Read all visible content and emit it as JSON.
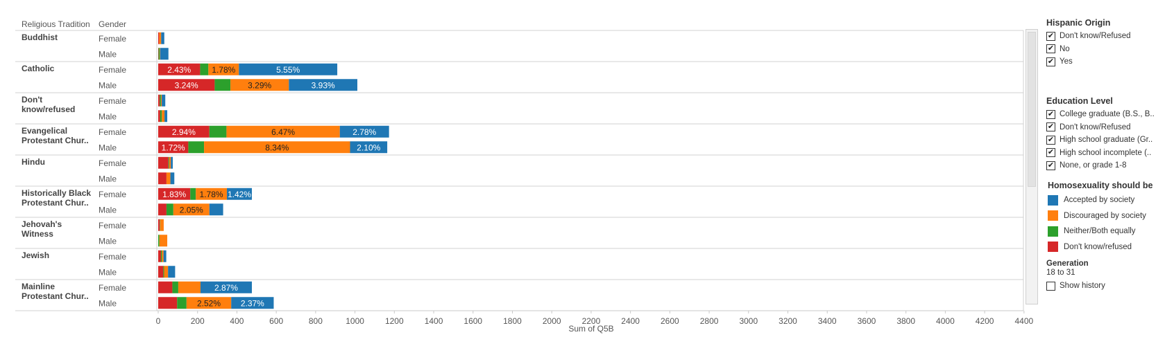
{
  "header": {
    "religion_col": "Religious Tradition",
    "gender_col": "Gender"
  },
  "filters": {
    "hispanic": {
      "title": "Hispanic Origin",
      "items": [
        {
          "label": "Don't know/Refused",
          "checked": true
        },
        {
          "label": "No",
          "checked": true
        },
        {
          "label": "Yes",
          "checked": true
        }
      ]
    },
    "education": {
      "title": "Education Level",
      "items": [
        {
          "label": "College graduate (B.S., B..",
          "checked": true
        },
        {
          "label": "Don't know/Refused",
          "checked": true
        },
        {
          "label": "High school graduate (Gr..",
          "checked": true
        },
        {
          "label": "High school incomplete (..",
          "checked": true
        },
        {
          "label": "None, or grade 1-8",
          "checked": true
        }
      ]
    }
  },
  "legend": {
    "title": "Homosexuality should be",
    "items": [
      {
        "label": "Accepted by society",
        "color": "#1f77b4"
      },
      {
        "label": "Discouraged by society",
        "color": "#ff7f0e"
      },
      {
        "label": "Neither/Both equally",
        "color": "#2ca02c"
      },
      {
        "label": "Don't know/refused",
        "color": "#d62728"
      }
    ]
  },
  "generation": {
    "title": "Generation",
    "value": "18 to 31",
    "show_history_label": "Show history",
    "show_history_checked": false
  },
  "chart_data": {
    "type": "bar",
    "orientation": "horizontal",
    "stacked": true,
    "xlabel": "Sum of Q5B",
    "xlim": [
      0,
      4500
    ],
    "xticks": [
      0,
      200,
      400,
      600,
      800,
      1000,
      1200,
      1400,
      1600,
      1800,
      2000,
      2200,
      2400,
      2600,
      2800,
      3000,
      3200,
      3400,
      3600,
      3800,
      4000,
      4200,
      4400
    ],
    "stack_order": [
      "Don't know/refused",
      "Neither/Both equally",
      "Discouraged by society",
      "Accepted by society"
    ],
    "series_colors": {
      "Don't know/refused": "#d62728",
      "Neither/Both equally": "#2ca02c",
      "Discouraged by society": "#ff7f0e",
      "Accepted by society": "#1f77b4"
    },
    "groups": [
      {
        "religion": [
          "Buddhist"
        ],
        "rows": [
          {
            "gender": "Female",
            "segments": [
              {
                "series": "Don't know/refused",
                "value": 5
              },
              {
                "series": "Neither/Both equally",
                "value": 0
              },
              {
                "series": "Discouraged by society",
                "value": 10
              },
              {
                "series": "Accepted by society",
                "value": 16
              }
            ]
          },
          {
            "gender": "Male",
            "segments": [
              {
                "series": "Don't know/refused",
                "value": 2
              },
              {
                "series": "Neither/Both equally",
                "value": 6
              },
              {
                "series": "Discouraged by society",
                "value": 2
              },
              {
                "series": "Accepted by society",
                "value": 42
              }
            ]
          }
        ]
      },
      {
        "religion": [
          "Catholic"
        ],
        "rows": [
          {
            "gender": "Female",
            "segments": [
              {
                "series": "Don't know/refused",
                "value": 213,
                "label": "2.43%"
              },
              {
                "series": "Neither/Both equally",
                "value": 42
              },
              {
                "series": "Discouraged by society",
                "value": 155,
                "label": "1.78%"
              },
              {
                "series": "Accepted by society",
                "value": 500,
                "label": "5.55%"
              }
            ]
          },
          {
            "gender": "Male",
            "segments": [
              {
                "series": "Don't know/refused",
                "value": 287,
                "label": "3.24%"
              },
              {
                "series": "Neither/Both equally",
                "value": 80
              },
              {
                "series": "Discouraged by society",
                "value": 297,
                "label": "3.29%"
              },
              {
                "series": "Accepted by society",
                "value": 348,
                "label": "3.93%"
              }
            ]
          }
        ]
      },
      {
        "religion": [
          "Don't",
          "know/refused"
        ],
        "rows": [
          {
            "gender": "Female",
            "segments": [
              {
                "series": "Don't know/refused",
                "value": 8
              },
              {
                "series": "Neither/Both equally",
                "value": 6
              },
              {
                "series": "Discouraged by society",
                "value": 4
              },
              {
                "series": "Accepted by society",
                "value": 18
              }
            ]
          },
          {
            "gender": "Male",
            "segments": [
              {
                "series": "Don't know/refused",
                "value": 10
              },
              {
                "series": "Neither/Both equally",
                "value": 8
              },
              {
                "series": "Discouraged by society",
                "value": 14
              },
              {
                "series": "Accepted by society",
                "value": 14
              }
            ]
          }
        ]
      },
      {
        "religion": [
          "Evangelical",
          "Protestant Chur.."
        ],
        "rows": [
          {
            "gender": "Female",
            "segments": [
              {
                "series": "Don't know/refused",
                "value": 260,
                "label": "2.94%"
              },
              {
                "series": "Neither/Both equally",
                "value": 87
              },
              {
                "series": "Discouraged by society",
                "value": 576,
                "label": "6.47%"
              },
              {
                "series": "Accepted by society",
                "value": 250,
                "label": "2.78%"
              }
            ]
          },
          {
            "gender": "Male",
            "segments": [
              {
                "series": "Don't know/refused",
                "value": 153,
                "label": "1.72%"
              },
              {
                "series": "Neither/Both equally",
                "value": 80
              },
              {
                "series": "Discouraged by society",
                "value": 742,
                "label": "8.34%"
              },
              {
                "series": "Accepted by society",
                "value": 189,
                "label": "2.10%"
              }
            ]
          }
        ]
      },
      {
        "religion": [
          "Hindu"
        ],
        "rows": [
          {
            "gender": "Female",
            "segments": [
              {
                "series": "Don't know/refused",
                "value": 52
              },
              {
                "series": "Neither/Both equally",
                "value": 4
              },
              {
                "series": "Discouraged by society",
                "value": 8
              },
              {
                "series": "Accepted by society",
                "value": 10
              }
            ]
          },
          {
            "gender": "Male",
            "segments": [
              {
                "series": "Don't know/refused",
                "value": 42
              },
              {
                "series": "Neither/Both equally",
                "value": 0
              },
              {
                "series": "Discouraged by society",
                "value": 20
              },
              {
                "series": "Accepted by society",
                "value": 20
              }
            ]
          }
        ]
      },
      {
        "religion": [
          "Historically Black",
          "Protestant Chur.."
        ],
        "rows": [
          {
            "gender": "Female",
            "segments": [
              {
                "series": "Don't know/refused",
                "value": 163,
                "label": "1.83%"
              },
              {
                "series": "Neither/Both equally",
                "value": 28
              },
              {
                "series": "Discouraged by society",
                "value": 158,
                "label": "1.78%"
              },
              {
                "series": "Accepted by society",
                "value": 127,
                "label": "1.42%"
              }
            ]
          },
          {
            "gender": "Male",
            "segments": [
              {
                "series": "Don't know/refused",
                "value": 42
              },
              {
                "series": "Neither/Both equally",
                "value": 35
              },
              {
                "series": "Discouraged by society",
                "value": 183,
                "label": "2.05%"
              },
              {
                "series": "Accepted by society",
                "value": 70
              }
            ]
          }
        ]
      },
      {
        "religion": [
          "Jehovah's",
          "Witness"
        ],
        "rows": [
          {
            "gender": "Female",
            "segments": [
              {
                "series": "Don't know/refused",
                "value": 8
              },
              {
                "series": "Neither/Both equally",
                "value": 2
              },
              {
                "series": "Discouraged by society",
                "value": 18
              },
              {
                "series": "Accepted by society",
                "value": 0
              }
            ]
          },
          {
            "gender": "Male",
            "segments": [
              {
                "series": "Don't know/refused",
                "value": 0
              },
              {
                "series": "Neither/Both equally",
                "value": 6
              },
              {
                "series": "Discouraged by society",
                "value": 40
              },
              {
                "series": "Accepted by society",
                "value": 0
              }
            ]
          }
        ]
      },
      {
        "religion": [
          "Jewish"
        ],
        "rows": [
          {
            "gender": "Female",
            "segments": [
              {
                "series": "Don't know/refused",
                "value": 14
              },
              {
                "series": "Neither/Both equally",
                "value": 5
              },
              {
                "series": "Discouraged by society",
                "value": 8
              },
              {
                "series": "Accepted by society",
                "value": 14
              }
            ]
          },
          {
            "gender": "Male",
            "segments": [
              {
                "series": "Don't know/refused",
                "value": 26
              },
              {
                "series": "Neither/Both equally",
                "value": 4
              },
              {
                "series": "Discouraged by society",
                "value": 20
              },
              {
                "series": "Accepted by society",
                "value": 36
              }
            ]
          }
        ]
      },
      {
        "religion": [
          "Mainline",
          "Protestant Chur.."
        ],
        "rows": [
          {
            "gender": "Female",
            "segments": [
              {
                "series": "Don't know/refused",
                "value": 72
              },
              {
                "series": "Neither/Both equally",
                "value": 30
              },
              {
                "series": "Discouraged by society",
                "value": 113
              },
              {
                "series": "Accepted by society",
                "value": 261,
                "label": "2.87%"
              }
            ]
          },
          {
            "gender": "Male",
            "segments": [
              {
                "series": "Don't know/refused",
                "value": 96
              },
              {
                "series": "Neither/Both equally",
                "value": 48
              },
              {
                "series": "Discouraged by society",
                "value": 227,
                "label": "2.52%"
              },
              {
                "series": "Accepted by society",
                "value": 216,
                "label": "2.37%"
              }
            ]
          }
        ]
      }
    ]
  }
}
